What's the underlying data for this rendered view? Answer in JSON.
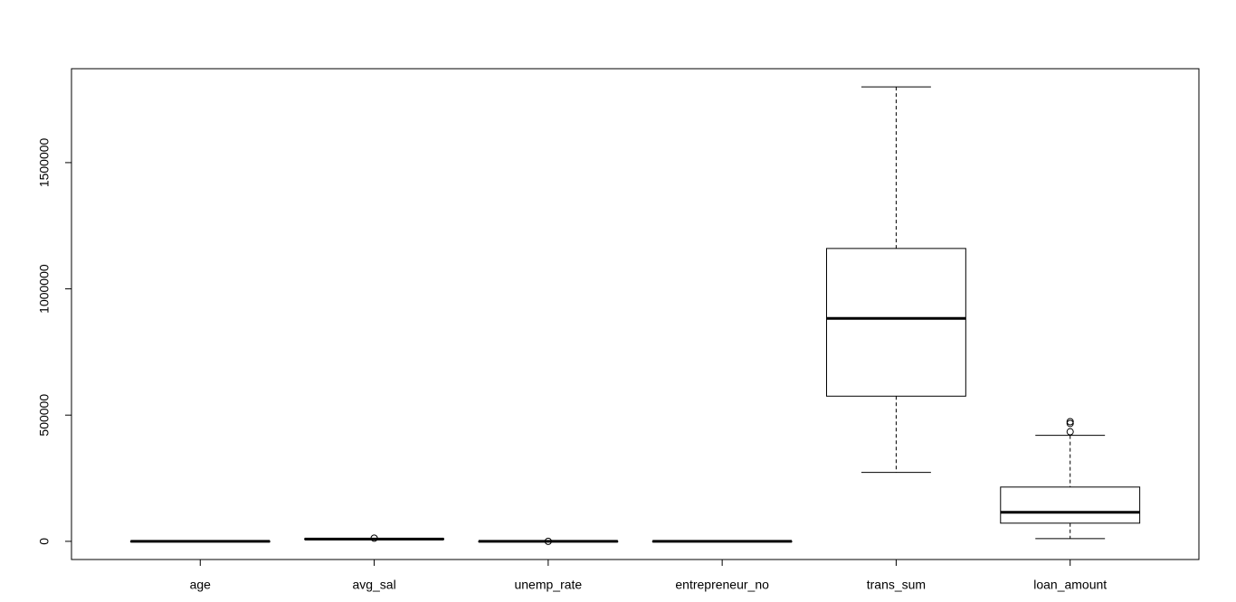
{
  "chart_data": {
    "type": "boxplot",
    "categories": [
      "age",
      "avg_sal",
      "unemp_rate",
      "entrepreneur_no",
      "trans_sum",
      "loan_amount"
    ],
    "boxes": [
      {
        "min": 12,
        "q1": 27,
        "median": 39,
        "q3": 52,
        "max": 65,
        "outliers": []
      },
      {
        "min": 8110,
        "q1": 8547,
        "median": 8980,
        "q3": 10045,
        "max": 10177,
        "outliers": [
          12541
        ]
      },
      {
        "min": 0.43,
        "q1": 2.31,
        "median": 3.49,
        "q3": 4.72,
        "max": 7.34,
        "outliers": [
          9.4
        ]
      },
      {
        "min": 81,
        "q1": 105,
        "median": 113,
        "q3": 132,
        "max": 155,
        "outliers": []
      },
      {
        "min": 273000,
        "q1": 575000,
        "median": 883000,
        "q3": 1160000,
        "max": 1800000,
        "outliers": []
      },
      {
        "min": 11000,
        "q1": 72000,
        "median": 115000,
        "q3": 215000,
        "max": 420000,
        "outliers": [
          434000,
          467000,
          474000
        ]
      }
    ],
    "color": "#000000",
    "ylim": [
      -72000,
      1872000
    ],
    "yticks": [
      0,
      500000,
      1000000,
      1500000
    ]
  }
}
